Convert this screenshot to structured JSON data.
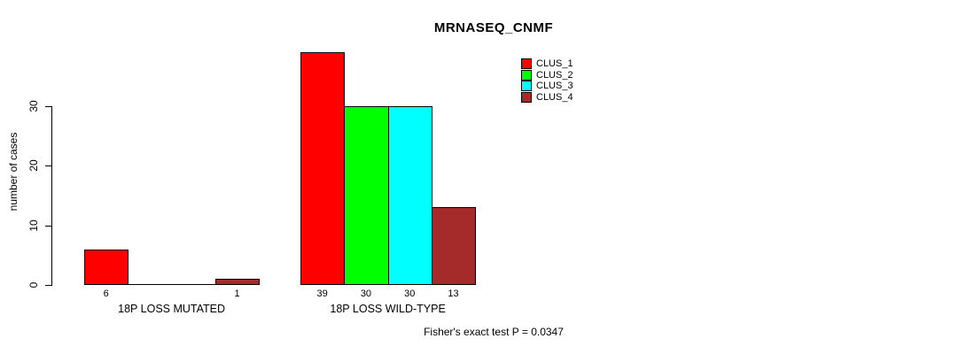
{
  "chart_data": {
    "type": "bar",
    "title": "MRNASEQ_CNMF",
    "ylabel": "number of cases",
    "xlabel": "",
    "footnote": "Fisher's exact test P = 0.0347",
    "yticks": [
      0,
      10,
      20,
      30
    ],
    "ylim": [
      0,
      39
    ],
    "grid": false,
    "legend_position": "top-right",
    "series": [
      {
        "name": "CLUS_1",
        "color": "#FF0000"
      },
      {
        "name": "CLUS_2",
        "color": "#00FF00"
      },
      {
        "name": "CLUS_3",
        "color": "#00FFFF"
      },
      {
        "name": "CLUS_4",
        "color": "#A52A2A"
      }
    ],
    "categories": [
      "18P LOSS MUTATED",
      "18P LOSS WILD-TYPE"
    ],
    "groups": [
      {
        "label": "18P LOSS MUTATED",
        "values": [
          6,
          0,
          0,
          1
        ],
        "value_labels": [
          "6",
          "",
          "",
          "1"
        ]
      },
      {
        "label": "18P LOSS WILD-TYPE",
        "values": [
          39,
          30,
          30,
          13
        ],
        "value_labels": [
          "39",
          "30",
          "30",
          "13"
        ]
      }
    ]
  }
}
